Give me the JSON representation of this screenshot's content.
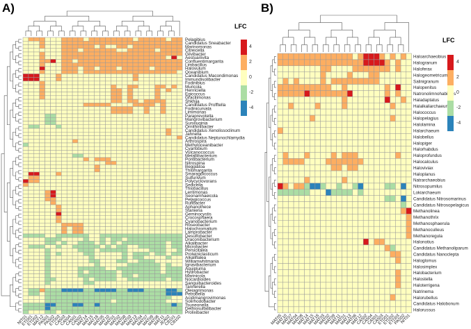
{
  "panels": {
    "a_label": "A)",
    "b_label": "B)"
  },
  "legend": {
    "title": "LFC",
    "ticks": [
      "4",
      "2",
      "0",
      "-2",
      "-4"
    ],
    "colors": [
      "#d7191c",
      "#fdae61",
      "#ffffbf",
      "#abdda4",
      "#2b83ba"
    ]
  },
  "chart_data": [
    {
      "type": "heatmap",
      "title": "A)",
      "legend_title": "LFC",
      "value_scale": [
        -4,
        4
      ],
      "cell_code": {
        "r": 4,
        "o": 2,
        "0": 0,
        "g": -2,
        "b": -4
      },
      "columns": [
        "NIT01",
        "ETD01",
        "ETD02",
        "MAT12",
        "PAS01",
        "PAS02",
        "ETD03",
        "CA503",
        "CA504",
        "CA501",
        "CA502",
        "MAT14",
        "MAT15",
        "MAT16",
        "MAT05",
        "MAT10",
        "MAT01",
        "MAT02",
        "MAT08",
        "MAT03",
        "MAT13",
        "MAT04",
        "MAT07",
        "MAT09",
        "MAT06",
        "MAT11",
        "JEA02",
        "CB101",
        "CB102"
      ],
      "rows": [
        "Pelagibius",
        "Candidatus Sneabacter",
        "Marinomonas",
        "Citreicella",
        "Gilvibacter",
        "Aestuariivita",
        "Confluentimargarita",
        "Limbacillus",
        "Halovulum",
        "Oceanibium",
        "Candidatus Macondimonas",
        "Immundisolibacter",
        "Fodinibius",
        "Muricola",
        "Henriciella",
        "Egicoccus",
        "Gracilimonas",
        "Shkhija",
        "Candidatus Profftella",
        "Fodinicurvata",
        "Limimonas",
        "Paraprevotella",
        "Mangrovibacterium",
        "Sunxiuqinia",
        "Ornithinibacter",
        "Candidatus Xenolissoclinum",
        "Jahnella",
        "Candidatus Neptunochlamydia",
        "Arthrospira",
        "Methyloceanibacter",
        "Cyanobium",
        "Vulcanococcus",
        "Metallibacterium",
        "Pontibacterium",
        "Nitrospina",
        "Beggiatoa",
        "Thiomargarita",
        "Smaragdicoccus",
        "Sulfurivum",
        "Polycyclovorans",
        "Sedicella",
        "Thiobacillus",
        "Lentimonas",
        "Seonamhaeicola",
        "Pelagicoccus",
        "Rufibacter",
        "Aphanothece",
        "Stanieria",
        "Geminocystis",
        "Crocosphaera",
        "Cyanobacterium",
        "Roseobacter",
        "Halochromatium",
        "Lamprobacter",
        "Desulfobacter",
        "Draconibacterium",
        "Alkalibacter",
        "Microbacter",
        "Persicitalea",
        "Proteiniclasticum",
        "Alkaliflalea",
        "Williamwhitmania",
        "Ignavibacterium",
        "Aquipluma",
        "Hydrobacter",
        "Marinicola",
        "Nocardioides",
        "Sanguibacteroides",
        "Tannerella",
        "Oleiagrimonas",
        "Petrobella",
        "Acidimangrovimonas",
        "Solirhodobacter",
        "Tsuneonella",
        "Dethiosulfatibacter",
        "Prolixibacter"
      ],
      "values": [
        "0ooo000oooo0oooooooo0ooooo0oo",
        "000o000oooooooooooooooooooooo",
        "000o000oooooo0o00oo0ooooooooo",
        "0000000ooo0oooooo00ooooo0oooo",
        "000o000oooooooooooooooooooooo",
        "000o000ooooooooooooooooooo0r0",
        "000oor0oo0ooooooooooooooooooo",
        "000o000oooooooooooooooooooooo",
        "000r000ooo0oo0ooo0ooooo0ooooo",
        "000o000ooo0ooooooooooooooooo0",
        "rrr000o0000000000000o00000000",
        "rrr000o0000000000000o00000000",
        "000o",
        "000o000000000000o00oo000oo0o0",
        "000o000000000000oo0o0000o0o00",
        "000o000000000000oo0o0000o0000",
        "000o000000000000oo0o0000o0000",
        "0000000000000000oo0oo0oooo000",
        "00000000000ooooo0000oooo0o000",
        "0000000000000000oooo00o00o000",
        "0000000000000000oooo00o00o000",
        "0000gg",
        "0000gg",
        "0000gg",
        "0gg000g",
        "00000000000000000000000000o",
        "00000000000000000000000000o",
        "0000000000000000000000000000o",
        "000000000o",
        "g",
        "",
        "",
        "000000000gg",
        "00000000000o0ooo",
        "000000000000000oo",
        "0000000000000o",
        "0000000000000o",
        "0rr000o",
        "0oo",
        "roo",
        "o",
        "",
        "0000or",
        "0000or",
        "0000oo",
        "00000o",
        "000000o",
        "000000o",
        "000000r",
        "000000o",
        "000000o",
        "0000000oooo",
        "0000000o0oo",
        "0000000o0oo",
        "gggg00gggggg00ggggggggggggggg",
        "0000ggg0000g00g0gg0gggggggggg",
        "0000gg0g00ggg0g0g0gggggggg0gg",
        "0ggg00g00ggggg0g0gg00ggggg0gg",
        "0000g00000ggg0ggggg0000ggg00g",
        "0000g0g0000gg00000g0ggg0gg0gg",
        "0000g0000000g00000g0gg0000g00",
        "0000g0000000gg000gg00ggg00000",
        "0000g00000000g00000gggggg0g0",
        "0000g00000ggggg00gggggggg0ggg",
        "0000g00000g0ggggg0ggggggg0ggg",
        "0000g00000ggggggg0gg0gggggggg",
        "0000gg00000g0gggg00ggggggg0gg",
        "0000g000000gg",
        "",
        "0ggogggbbbbggbbbbggbbbggggbbg",
        "0gg0ggggggggggggggggggggggbbb",
        "0000ggggggggggggggggggggggg00",
        "0000gggggggggggg0ggggggggg000",
        "ggggbbgggbbggbgggggggggggggbg",
        "ggggbgggggggggggggggggggggggg",
        "g000gg0gggggggggggggggggggggg"
      ]
    },
    {
      "type": "heatmap",
      "title": "B)",
      "legend_title": "LFC",
      "value_scale": [
        -4,
        4
      ],
      "cell_code": {
        "r": 4,
        "o": 2,
        "0": 0,
        "g": -2,
        "b": -4
      },
      "columns": [
        "MAT05",
        "MAT10",
        "MAT07",
        "MAT04",
        "MAT08",
        "MAT14",
        "MAT15",
        "MAT16",
        "MAT03",
        "MAT02",
        "MAT09",
        "MAT11",
        "MAT01",
        "MAT13",
        "MAT06",
        "MAT12",
        "CA502",
        "CA504",
        "CA501",
        "CA503",
        "ETD01",
        "ETD02",
        "ETD03",
        "PAS02",
        "NIT01"
      ],
      "rows": [
        "Haloarchaeobius",
        "Halogranum",
        "Haloferax",
        "Halogeometricum",
        "Salinigranum",
        "Halopenitus",
        "Natronolimnohabitans",
        "Haladaptatus",
        "Halalkaliarchaeum",
        "Halococcus",
        "Halopelagius",
        "Halolamina",
        "Halarchaeum",
        "Halobellus",
        "Halopiger",
        "Halorhabdus",
        "Haloprofundus",
        "Halocalculus",
        "Haloviviax",
        "Haloplanus",
        "Natrarchaeobius",
        "Nitrosopumilus",
        "Lokiarchaeum",
        "Candidatus Nitrosomarinus",
        "Candidatus Nitrosopelagicus",
        "Methanolinea",
        "Methanothrix",
        "Methanosphaerula",
        "Methanoculleus",
        "Methanoregula",
        "Halonotius",
        "Candidatus Methanoliparum",
        "Candidatus Nanoclepta",
        "Haloglomus",
        "Halosimplex",
        "Halobacterium",
        "Halostella",
        "Haloterrigena",
        "Natrinema",
        "Halorubellus",
        "Candidatus Halobonum",
        "Halorussus"
      ],
      "values": [
        "oooooooooooooo0orrro0o0o0",
        "oooooooooooooooorrrro0o00",
        "00000000oo0000ooooooo0o00",
        "00000000o0000o000oo000000",
        "0o0o0000o0ooooooooo000000",
        "oooooooooo00o0000000o0r00",
        "ooooorooooooor000000o0o00",
        "000000000000o0000000r00o0",
        "00o0000o0000o00000000o000",
        "",
        "000000o00000000000000o000",
        "",
        "o",
        "",
        "",
        "",
        "0o000o0000o0ooo0000000o00",
        "0oooo0000ooooooo",
        "0000000000oo0oo",
        "",
        "00000o000000o",
        "ro0oogbbg00g00gb0000gg0b0",
        "gggggg000bgggg0g000000000",
        "00000000000000000000gg0b0",
        "00000000000000000000000g0",
        "00000000000000000000000or",
        "000000000000000000000000o",
        "000000000000000000000000o",
        "000000000000000000000000o",
        "000000000000000000000000o",
        "0000000000000000r0oo",
        "00000000000000000000og",
        "000000000000000000000oo",
        "0000000000000000000000o",
        "",
        "0000000000000000000000o",
        "0000000000000000000000o",
        "0000000000000000000000o",
        "",
        "000000000000000000000o",
        "",
        ""
      ]
    }
  ]
}
